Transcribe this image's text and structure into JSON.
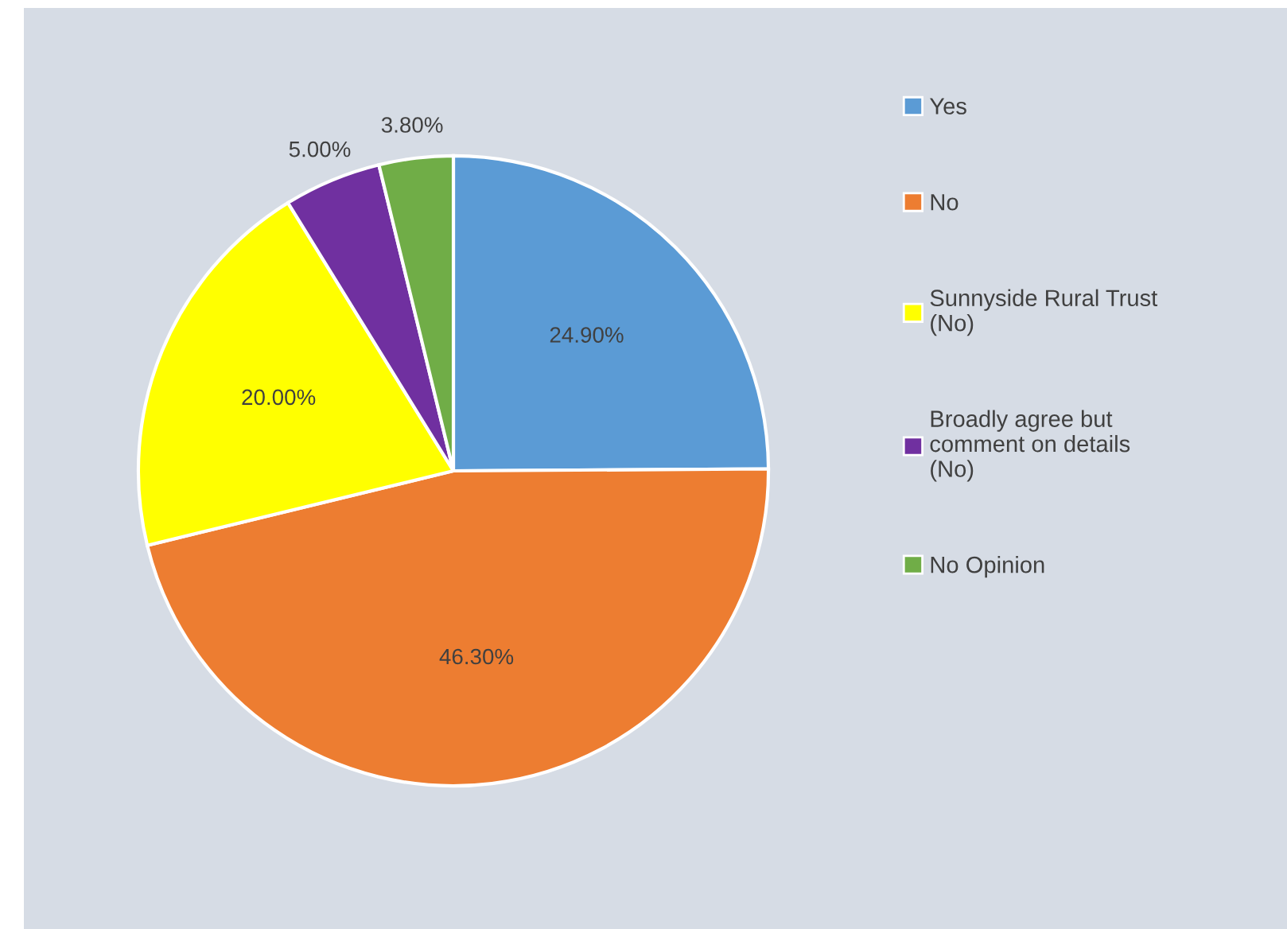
{
  "chart_data": {
    "type": "pie",
    "categories": [
      "Yes",
      "No",
      "Sunnyside Rural Trust\n(No)",
      "Broadly agree but\ncomment on details\n(No)",
      "No Opinion"
    ],
    "values": [
      24.9,
      46.3,
      20.0,
      5.0,
      3.8
    ],
    "colors": [
      "#5b9bd5",
      "#ed7d31",
      "#ffff00",
      "#7030a0",
      "#70ad47"
    ],
    "value_labels": [
      "24.90%",
      "46.30%",
      "20.00%",
      "5.00%",
      "3.80%"
    ],
    "legend": "right"
  }
}
